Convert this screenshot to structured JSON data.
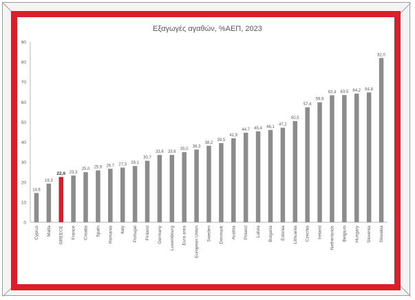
{
  "chart_data": {
    "type": "bar",
    "title": "Εξαγωγές αγαθών, %ΑΕΠ, 2023",
    "xlabel": "",
    "ylabel": "",
    "ylim": [
      0,
      90
    ],
    "yticks": [
      0,
      10,
      20,
      30,
      40,
      50,
      60,
      70,
      80,
      90
    ],
    "grid": false,
    "legend": "none",
    "categories": [
      "Cyprus",
      "Malta",
      "GREECE",
      "France",
      "Croatia",
      "Spain",
      "Romania",
      "Italy",
      "Portugal",
      "Finland",
      "Germany",
      "Luxembourg",
      "Euro area",
      "European Union",
      "Sweden",
      "Denmark",
      "Austria",
      "Poland",
      "Latvia",
      "Bulgaria",
      "Estonia",
      "Lithuania",
      "Czechia",
      "Ireland",
      "Netherlands",
      "Belgium",
      "Hungary",
      "Slovenia",
      "Slovakia"
    ],
    "values": [
      14.6,
      19.3,
      22.6,
      23.3,
      25.0,
      25.9,
      26.7,
      27.3,
      28.1,
      30.7,
      33.6,
      33.6,
      35.0,
      36.3,
      38.2,
      39.5,
      41.9,
      44.7,
      45.4,
      46.1,
      47.2,
      50.5,
      57.4,
      59.9,
      63.4,
      63.5,
      64.2,
      64.8,
      82.0
    ],
    "data_labels": [
      "14,6",
      "19,3",
      "22,6",
      "23,3",
      "25,0",
      "25,9",
      "26,7",
      "27,3",
      "28,1",
      "30,7",
      "33,6",
      "33,6",
      "35,0",
      "36,3",
      "38,2",
      "39,5",
      "41,9",
      "44,7",
      "45,4",
      "46,1",
      "47,2",
      "50,5",
      "57,4",
      "59,9",
      "63,4",
      "63,5",
      "64,2",
      "64,8",
      "82,0"
    ],
    "highlight": "GREECE",
    "colors": {
      "bar": "#8c8c8c",
      "highlight_bar": "#d7202b",
      "frame": "#d7202b",
      "text": "#595959",
      "axis": "#b5b5b5"
    }
  }
}
